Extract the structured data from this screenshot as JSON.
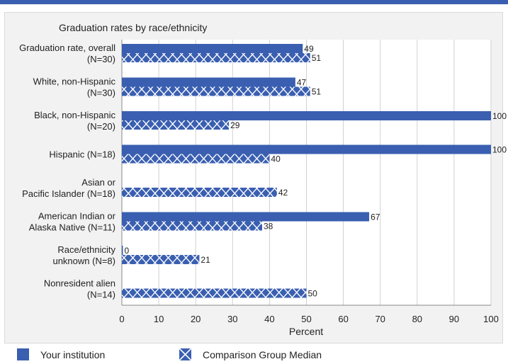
{
  "chart_data": {
    "type": "bar",
    "orientation": "horizontal",
    "title": "Graduation rates by race/ethnicity",
    "xlabel": "Percent",
    "xlim": [
      0,
      100
    ],
    "xticks": [
      0,
      10,
      20,
      30,
      40,
      50,
      60,
      70,
      80,
      90,
      100
    ],
    "grid": true,
    "categories": [
      [
        "Graduation rate, overall",
        "(N=30)"
      ],
      [
        "White, non-Hispanic",
        "(N=30)"
      ],
      [
        "Black, non-Hispanic",
        "(N=20)"
      ],
      [
        "Hispanic (N=18)"
      ],
      [
        "Asian or",
        "Pacific Islander (N=18)"
      ],
      [
        "American Indian or",
        "Alaska Native (N=11)"
      ],
      [
        "Race/ethnicity",
        "unknown (N=8)"
      ],
      [
        "Nonresident alien",
        "(N=14)"
      ]
    ],
    "series": [
      {
        "name": "Your institution",
        "color": "#3a5fb1",
        "pattern": "solid",
        "values": [
          49,
          47,
          100,
          100,
          null,
          67,
          0,
          null
        ]
      },
      {
        "name": "Comparison Group Median",
        "color": "#3a5fb1",
        "pattern": "crosshatch",
        "values": [
          51,
          51,
          29,
          40,
          42,
          38,
          21,
          50
        ]
      }
    ],
    "legend_position": "bottom"
  }
}
